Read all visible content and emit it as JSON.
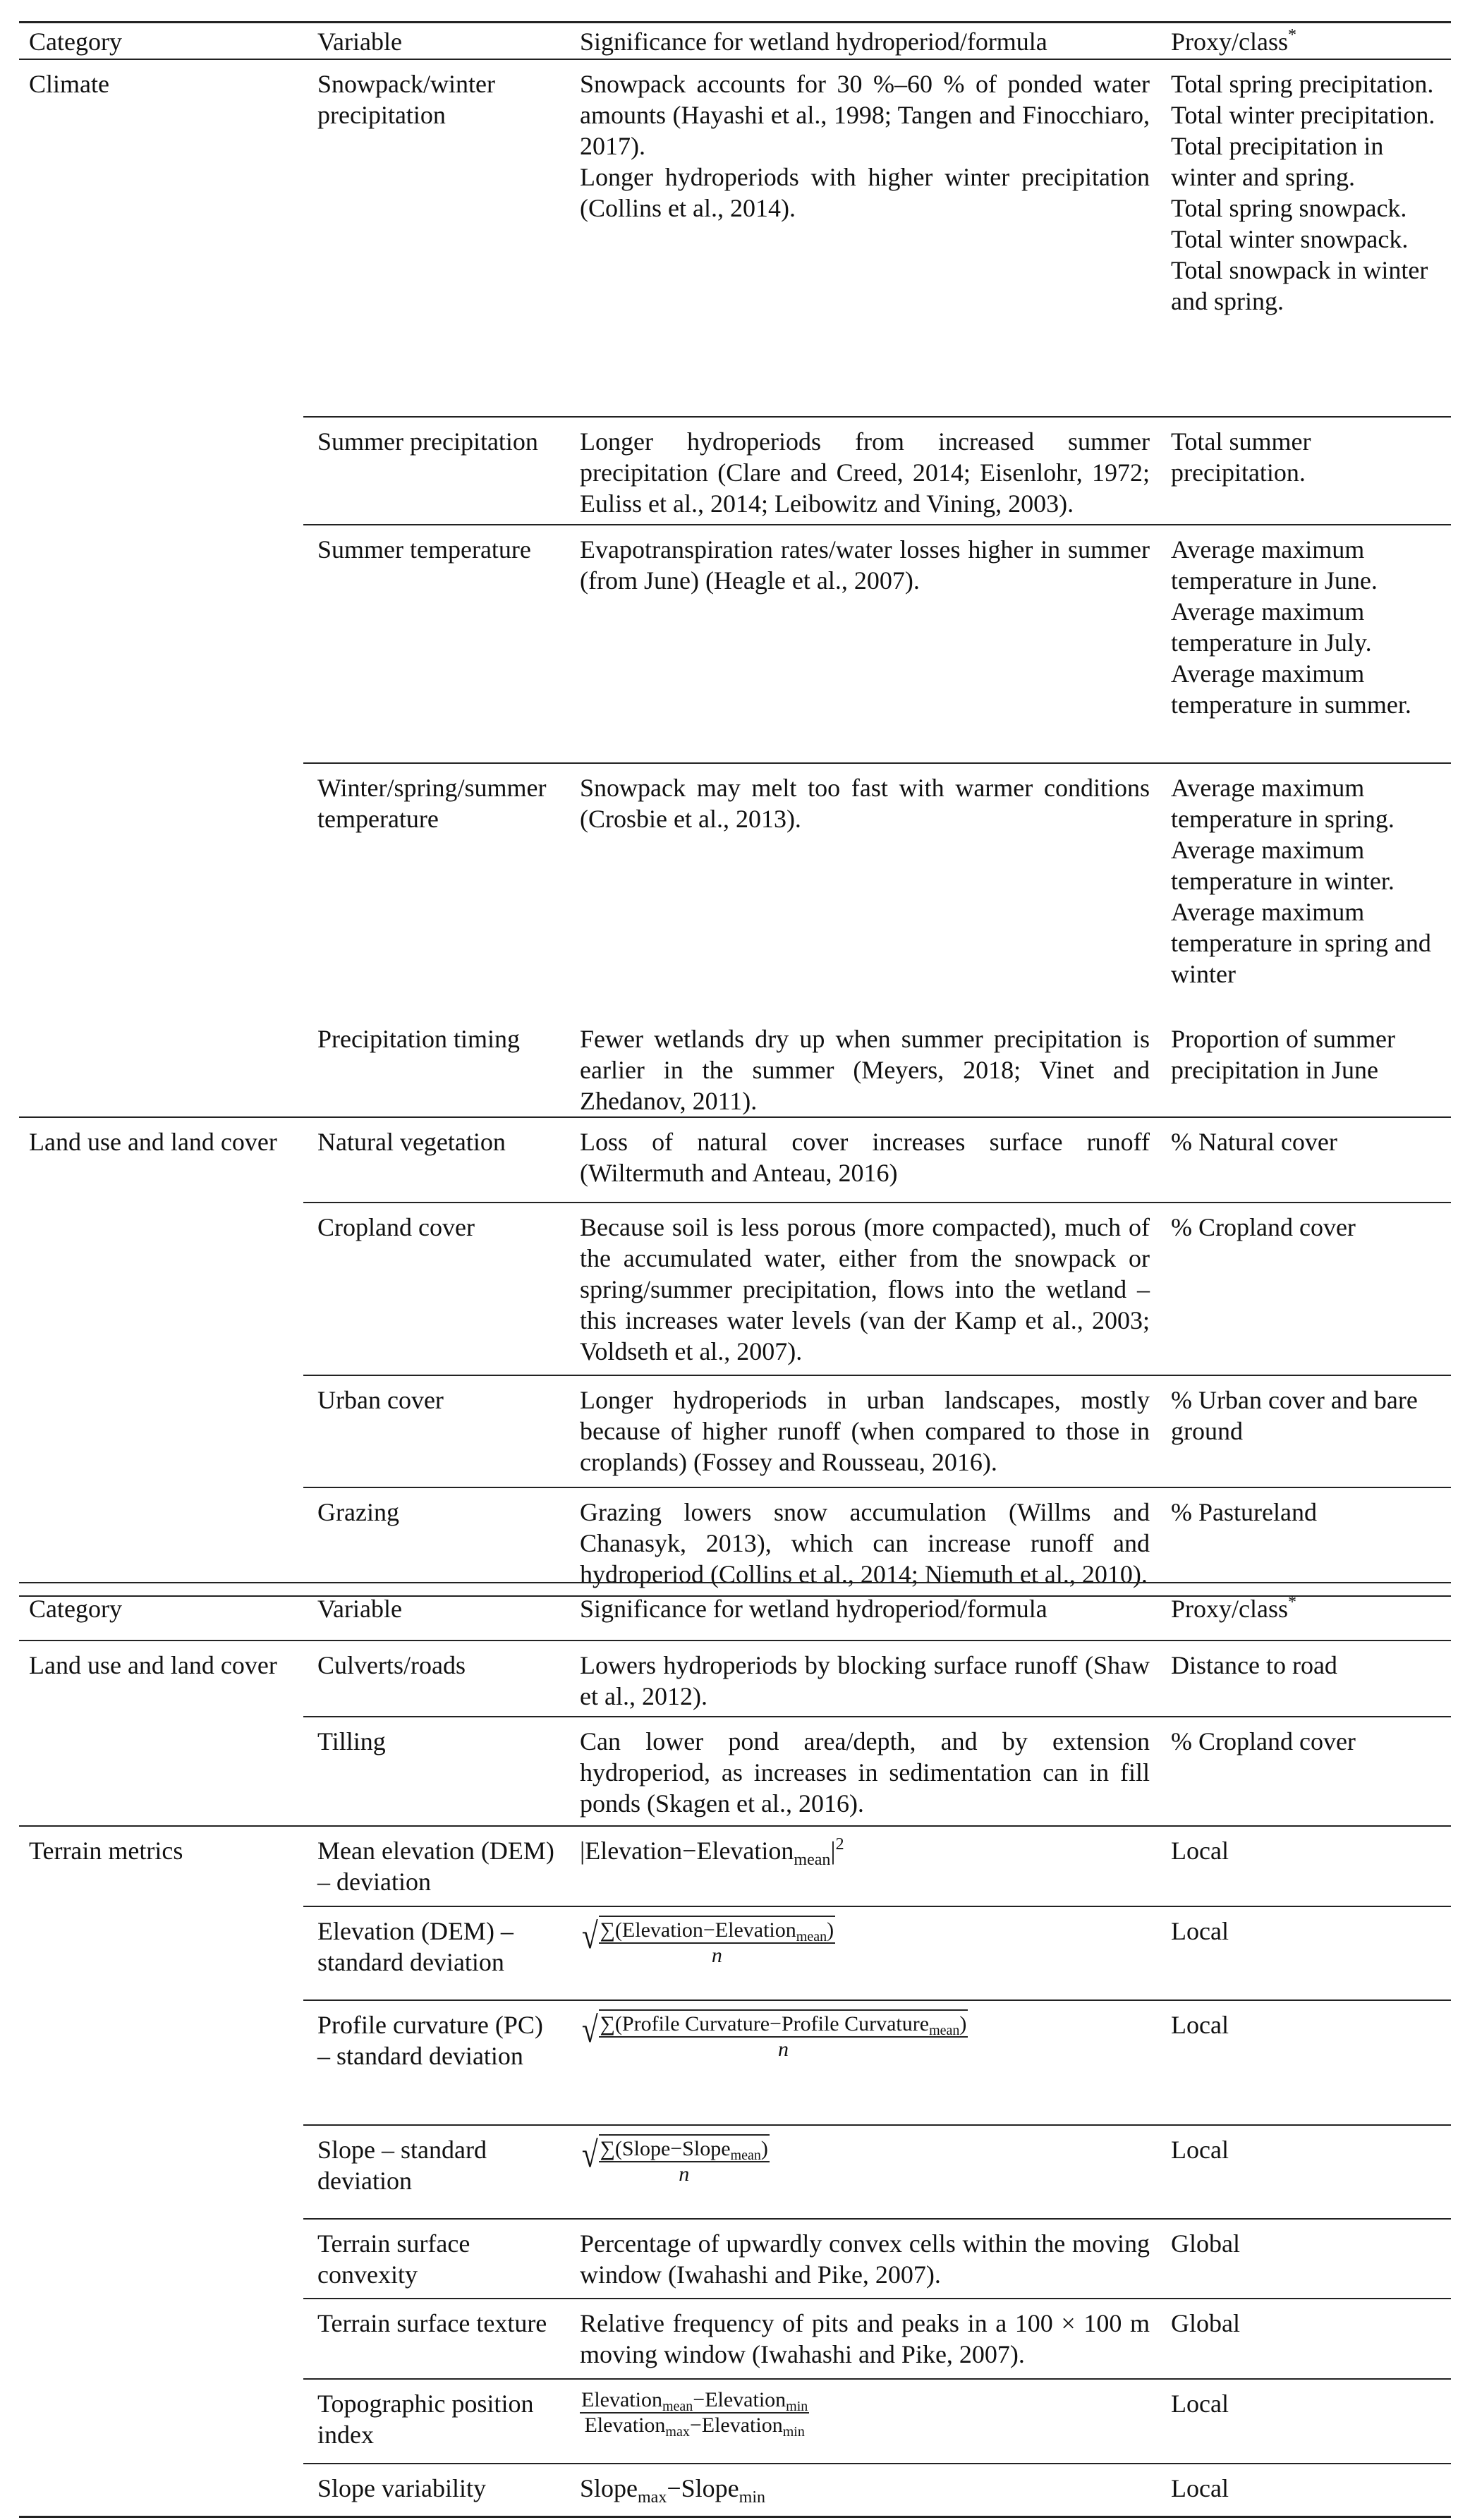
{
  "header": {
    "category": "Category",
    "variable": "Variable",
    "significance": "Significance for wetland hydroperiod/formula",
    "proxy": "Proxy/class",
    "proxy_mark": "*"
  },
  "table1": [
    {
      "category": "Climate",
      "variable": "Snowpack/winter precipitation",
      "significance": [
        "Snowpack accounts for 30 %–60 % of ponded water amounts (Hayashi et al., 1998; Tangen and Finocchiaro, 2017).",
        "Longer hydroperiods with higher winter precipitation (Collins et al., 2014)."
      ],
      "proxy": [
        "Total spring precipitation.",
        "Total winter precipitation.",
        "Total precipitation in winter and spring.",
        "Total spring snowpack.",
        "Total winter snowpack.",
        "Total snowpack in winter and spring."
      ]
    },
    {
      "category": "",
      "variable": "Summer precipitation",
      "significance": [
        "Longer hydroperiods from increased summer precipitation (Clare and Creed, 2014; Eisenlohr, 1972; Euliss et al., 2014; Leibowitz and Vining, 2003)."
      ],
      "proxy": [
        "Total summer precipitation."
      ]
    },
    {
      "category": "",
      "variable": "Summer temperature",
      "significance": [
        "Evapotranspiration rates/water losses higher in summer (from June) (Heagle et al., 2007)."
      ],
      "proxy": [
        "Average maximum temperature in June.",
        "Average maximum temperature in July.",
        "Average maximum temperature in summer."
      ]
    },
    {
      "category": "",
      "variable": "Winter/spring/summer temperature",
      "significance": [
        "Snowpack may melt too fast with warmer conditions (Crosbie et al., 2013)."
      ],
      "proxy": [
        "Average maximum temperature in spring.",
        "Average maximum temperature in winter.",
        "Average maximum temperature in spring and winter"
      ]
    },
    {
      "category": "",
      "variable": "Precipitation timing",
      "significance": [
        "Fewer wetlands dry up when summer precipitation is earlier in the summer (Meyers, 2018; Vinet and Zhedanov, 2011)."
      ],
      "proxy": [
        "Proportion of summer precipitation in June"
      ]
    },
    {
      "category": "Land use and land cover",
      "variable": "Natural vegetation",
      "significance": [
        "Loss of natural cover increases surface runoff (Wiltermuth and Anteau, 2016)"
      ],
      "proxy": [
        "% Natural cover"
      ]
    },
    {
      "category": "",
      "variable": "Cropland cover",
      "significance": [
        "Because soil is less porous (more compacted), much of the accumulated water, either from the snowpack or spring/summer precipitation, flows into the wetland – this increases water levels (van der Kamp et al., 2003; Voldseth et al., 2007)."
      ],
      "proxy": [
        "% Cropland cover"
      ]
    },
    {
      "category": "",
      "variable": "Urban cover",
      "significance": [
        "Longer hydroperiods in urban landscapes, mostly because of higher runoff (when compared to those in croplands) (Fossey and Rousseau, 2016)."
      ],
      "proxy": [
        "% Urban cover and bare ground"
      ]
    },
    {
      "category": "",
      "variable": "Grazing",
      "significance": [
        "Grazing lowers snow accumulation (Willms and Chanasyk, 2013), which can increase runoff and hydroperiod (Collins et al., 2014; Niemuth et al., 2010)."
      ],
      "proxy": [
        "% Pastureland"
      ]
    }
  ],
  "table2": [
    {
      "category": "Land use and land cover",
      "variable": "Culverts/roads",
      "significance": [
        "Lowers hydroperiods by blocking surface runoff (Shaw et al., 2012)."
      ],
      "proxy": [
        "Distance to road"
      ]
    },
    {
      "category": "",
      "variable": "Tilling",
      "significance": [
        "Can lower pond area/depth, and by extension hydroperiod, as increases in sedimentation can in fill ponds (Skagen et al., 2016)."
      ],
      "proxy": [
        "% Cropland cover"
      ]
    },
    {
      "category": "Terrain metrics",
      "variable": "Mean elevation (DEM) – deviation",
      "formula": {
        "type": "abs",
        "parts": [
          {
            "t": "|Elevation−Elevation"
          },
          {
            "sub": "mean"
          },
          {
            "t": "|"
          },
          {
            "sup": "2"
          }
        ]
      },
      "proxy": [
        "Local"
      ]
    },
    {
      "category": "",
      "variable": "Elevation (DEM) – standard deviation",
      "formula": {
        "type": "sqrtfrac",
        "num": [
          {
            "t": "∑(Elevation−Elevation"
          },
          {
            "sub": "mean"
          },
          {
            "t": ")"
          }
        ],
        "den": [
          {
            "t": "n"
          }
        ]
      },
      "proxy": [
        "Local"
      ]
    },
    {
      "category": "",
      "variable": "Profile curvature (PC) – standard deviation",
      "formula": {
        "type": "sqrtfrac",
        "num": [
          {
            "t": "∑(Profile Curvature−Profile Curvature"
          },
          {
            "sub": "mean"
          },
          {
            "t": ")"
          }
        ],
        "den": [
          {
            "t": "n"
          }
        ]
      },
      "proxy": [
        "Local"
      ]
    },
    {
      "category": "",
      "variable": "Slope – standard deviation",
      "formula": {
        "type": "sqrtfrac",
        "num": [
          {
            "t": "∑(Slope−Slope"
          },
          {
            "sub": "mean"
          },
          {
            "t": ")"
          }
        ],
        "den": [
          {
            "t": "n"
          }
        ]
      },
      "proxy": [
        "Local"
      ]
    },
    {
      "category": "",
      "variable": "Terrain surface convexity",
      "significance": [
        "Percentage of upwardly convex cells within the moving window (Iwahashi and Pike, 2007)."
      ],
      "proxy": [
        "Global"
      ]
    },
    {
      "category": "",
      "variable": "Terrain surface texture",
      "significance": [
        "Relative frequency of pits and peaks in a 100 × 100 m moving window (Iwahashi and Pike, 2007)."
      ],
      "proxy": [
        "Global"
      ]
    },
    {
      "category": "",
      "variable": "Topographic position index",
      "formula": {
        "type": "frac",
        "num": [
          {
            "t": "Elevation"
          },
          {
            "sub": "mean"
          },
          {
            "t": "−Elevation"
          },
          {
            "sub": "min"
          }
        ],
        "den": [
          {
            "t": "Elevation"
          },
          {
            "sub": "max"
          },
          {
            "t": "−Elevation"
          },
          {
            "sub": "min"
          }
        ]
      },
      "proxy": [
        "Local"
      ]
    },
    {
      "category": "",
      "variable": "Slope variability",
      "formula": {
        "type": "plain",
        "parts": [
          {
            "t": "Slope"
          },
          {
            "sub": "max"
          },
          {
            "t": "−Slope"
          },
          {
            "sub": "min"
          }
        ]
      },
      "proxy": [
        "Local"
      ]
    }
  ]
}
